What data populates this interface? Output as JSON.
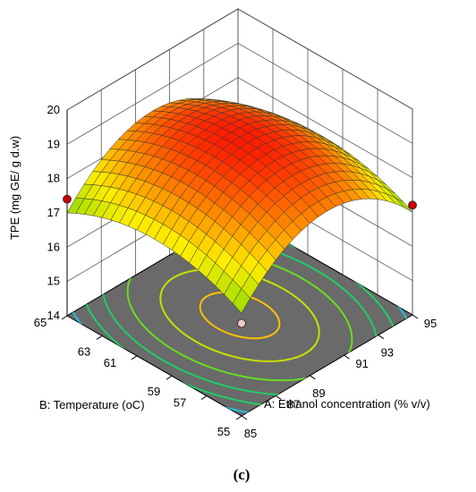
{
  "chart_data": {
    "type": "surface3d",
    "zlabel": "TPE (mg GE/ g d.w)",
    "xlabel": "A: Ethanol concentration (% v/v)",
    "ylabel": "B: Temperature (oC)",
    "panel_label": "(c)",
    "x_ticks": [
      85,
      87,
      89,
      91,
      93,
      95
    ],
    "y_ticks": [
      55,
      57,
      59,
      61,
      63,
      65
    ],
    "z_ticks": [
      14,
      15,
      16,
      17,
      18,
      19,
      20
    ],
    "xlim": [
      85,
      95
    ],
    "ylim": [
      55,
      65
    ],
    "zlim": [
      14,
      20
    ],
    "model": {
      "form": "quadratic",
      "center": {
        "x": 90,
        "y": 60
      },
      "max_value": 19.2,
      "x_half_range_drop": 1.5,
      "y_half_range_drop": 0.7
    },
    "design_points": [
      {
        "x": 95,
        "y": 55,
        "z": 17.2,
        "color": "#cc0000"
      },
      {
        "x": 85,
        "y": 65,
        "z": 17.4,
        "color": "#cc0000"
      },
      {
        "x": 85,
        "y": 55,
        "z": 16.7,
        "color": "#f2c6c6"
      }
    ],
    "contour_levels": [
      17.2,
      17.6,
      18.0,
      18.4,
      18.8,
      19.1
    ],
    "colors": {
      "surface_low": "#33cc00",
      "surface_mid": "#ffee00",
      "surface_high": "#ff1a00",
      "floor": "#6a6a6a",
      "grid": "#555555"
    }
  }
}
